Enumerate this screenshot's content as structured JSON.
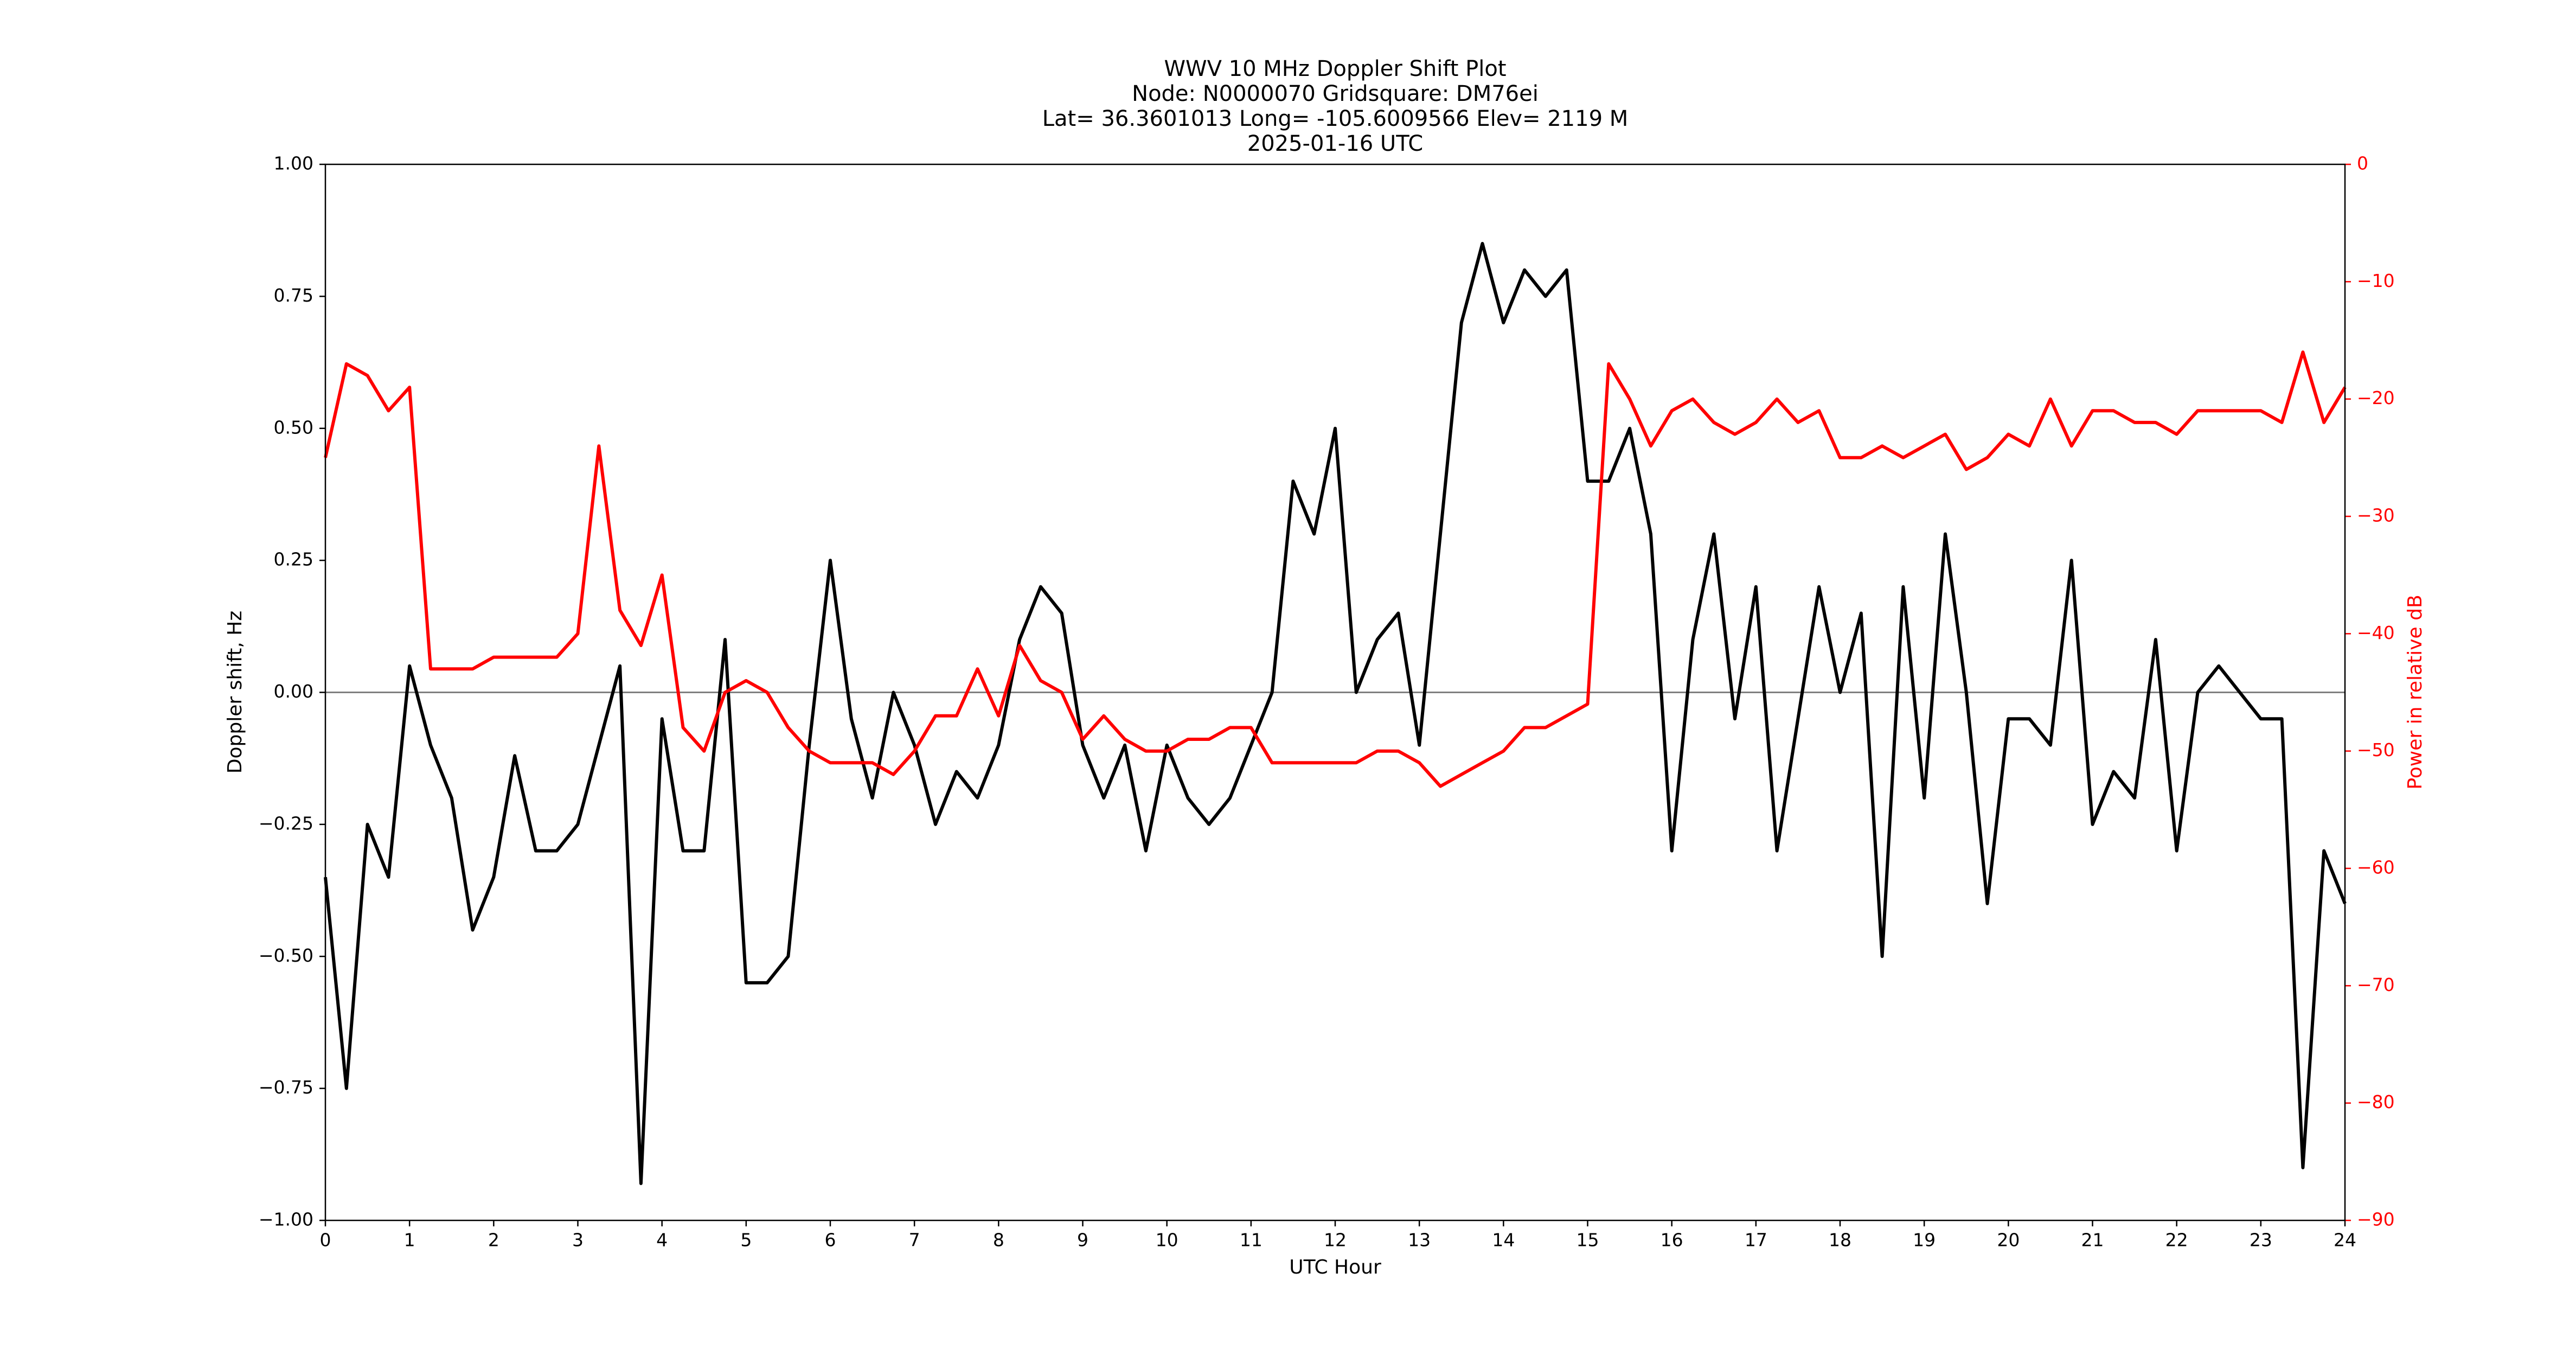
{
  "chart_data": {
    "type": "line",
    "title": [
      "WWV 10 MHz Doppler Shift Plot",
      "Node:  N0000070     Gridsquare:  DM76ei",
      "Lat= 36.3601013    Long= -105.6009566    Elev= 2119 M",
      "2025-01-16  UTC"
    ],
    "xlabel": "UTC Hour",
    "ylabel": "Doppler shift, Hz",
    "y2label": "Power in relative dB",
    "x": [
      0,
      0.25,
      0.5,
      0.75,
      1,
      1.25,
      1.5,
      1.75,
      2,
      2.25,
      2.5,
      2.75,
      3,
      3.25,
      3.5,
      3.75,
      4,
      4.25,
      4.5,
      4.75,
      5,
      5.25,
      5.5,
      5.75,
      6,
      6.25,
      6.5,
      6.75,
      7,
      7.25,
      7.5,
      7.75,
      8,
      8.25,
      8.5,
      8.75,
      9,
      9.25,
      9.5,
      9.75,
      10,
      10.25,
      10.5,
      10.75,
      11,
      11.25,
      11.5,
      11.75,
      12,
      12.25,
      12.5,
      12.75,
      13,
      13.25,
      13.5,
      13.75,
      14,
      14.25,
      14.5,
      14.75,
      15,
      15.25,
      15.5,
      15.75,
      16,
      16.25,
      16.5,
      16.75,
      17,
      17.25,
      17.5,
      17.75,
      18,
      18.25,
      18.5,
      18.75,
      19,
      19.25,
      19.5,
      19.75,
      20,
      20.25,
      20.5,
      20.75,
      21,
      21.25,
      21.5,
      21.75,
      22,
      22.25,
      22.5,
      22.75,
      23,
      23.25,
      23.5,
      23.75,
      24
    ],
    "series": [
      {
        "color": "#000000",
        "values": [
          -0.35,
          -0.75,
          -0.25,
          -0.35,
          0.05,
          -0.1,
          -0.2,
          -0.45,
          -0.35,
          -0.12,
          -0.3,
          -0.3,
          -0.25,
          -0.1,
          0.05,
          -0.93,
          -0.05,
          -0.3,
          -0.3,
          0.1,
          -0.55,
          -0.55,
          -0.5,
          -0.1,
          0.25,
          -0.05,
          -0.2,
          0.0,
          -0.1,
          -0.25,
          -0.15,
          -0.2,
          -0.1,
          0.1,
          0.2,
          0.15,
          -0.1,
          -0.2,
          -0.1,
          -0.3,
          -0.1,
          -0.2,
          -0.25,
          -0.2,
          -0.1,
          0.0,
          0.4,
          0.3,
          0.5,
          0.0,
          0.1,
          0.15,
          -0.1,
          0.3,
          0.7,
          0.85,
          0.7,
          0.8,
          0.75,
          0.8,
          0.4,
          0.4,
          0.5,
          0.3,
          -0.3,
          0.1,
          0.3,
          -0.05,
          0.2,
          -0.3,
          -0.05,
          0.2,
          0.0,
          0.15,
          -0.5,
          0.2,
          -0.2,
          0.3,
          0.0,
          -0.4,
          -0.05,
          -0.05,
          -0.1,
          0.25,
          -0.25,
          -0.15,
          -0.2,
          0.1,
          -0.3,
          0.0,
          0.05,
          0.0,
          -0.05,
          -0.05,
          -0.9,
          -0.3,
          -0.4
        ]
      },
      {
        "color": "#ff0000",
        "axis": "y2",
        "values": [
          -25,
          -17,
          -18,
          -21,
          -19,
          -43,
          -43,
          -43,
          -42,
          -42,
          -42,
          -42,
          -40,
          -24,
          -38,
          -41,
          -35,
          -48,
          -50,
          -45,
          -44,
          -45,
          -48,
          -50,
          -51,
          -51,
          -51,
          -52,
          -50,
          -47,
          -47,
          -43,
          -47,
          -41,
          -44,
          -45,
          -49,
          -47,
          -49,
          -50,
          -50,
          -49,
          -49,
          -48,
          -48,
          -51,
          -51,
          -51,
          -51,
          -51,
          -50,
          -50,
          -51,
          -53,
          -52,
          -51,
          -50,
          -48,
          -48,
          -47,
          -46,
          -17,
          -20,
          -24,
          -21,
          -20,
          -22,
          -23,
          -22,
          -20,
          -22,
          -21,
          -25,
          -25,
          -24,
          -25,
          -24,
          -23,
          -26,
          -25,
          -23,
          -24,
          -20,
          -24,
          -21,
          -21,
          -22,
          -22,
          -23,
          -21,
          -21,
          -21,
          -21,
          -22,
          -16,
          -22,
          -19
        ]
      }
    ],
    "xlim": [
      0,
      24
    ],
    "xticks": [
      0,
      1,
      2,
      3,
      4,
      5,
      6,
      7,
      8,
      9,
      10,
      11,
      12,
      13,
      14,
      15,
      16,
      17,
      18,
      19,
      20,
      21,
      22,
      23,
      24
    ],
    "ylim": [
      -1,
      1
    ],
    "yticks": [
      {
        "value": -1,
        "label": "−1.00"
      },
      {
        "value": -0.75,
        "label": "−0.75"
      },
      {
        "value": -0.5,
        "label": "−0.50"
      },
      {
        "value": -0.25,
        "label": "−0.25"
      },
      {
        "value": 0,
        "label": "0.00"
      },
      {
        "value": 0.25,
        "label": "0.25"
      },
      {
        "value": 0.5,
        "label": "0.50"
      },
      {
        "value": 0.75,
        "label": "0.75"
      },
      {
        "value": 1,
        "label": "1.00"
      }
    ],
    "y2lim": [
      -90,
      0
    ],
    "y2ticks": [
      0,
      {
        "value": -10,
        "label": "−10"
      },
      {
        "value": -20,
        "label": "−20"
      },
      {
        "value": -30,
        "label": "−30"
      },
      {
        "value": -40,
        "label": "−40"
      },
      {
        "value": -50,
        "label": "−50"
      },
      {
        "value": -60,
        "label": "−60"
      },
      {
        "value": -70,
        "label": "−70"
      },
      {
        "value": -80,
        "label": "−80"
      },
      {
        "value": -90,
        "label": "−90"
      }
    ],
    "y2color": "#ff0000",
    "hline": 0,
    "hline_color": "#808080"
  }
}
